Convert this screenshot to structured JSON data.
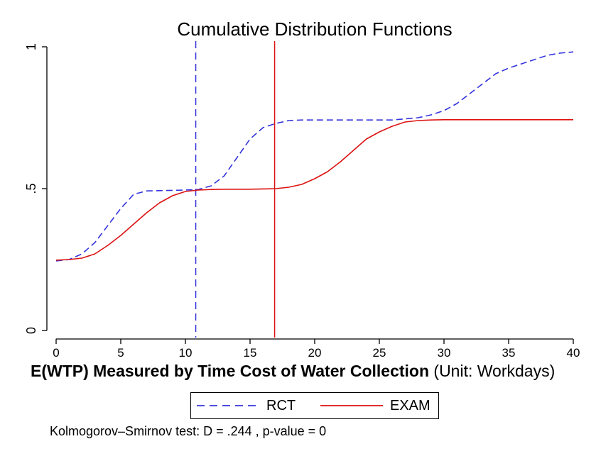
{
  "chart_data": {
    "type": "line",
    "title": "Cumulative Distribution Functions",
    "xlabel_bold": "E(WTP) Measured by Time Cost of Water Collection",
    "xlabel_rest": " (Unit: Workdays)",
    "xlim": [
      0,
      40
    ],
    "ylim": [
      0,
      1
    ],
    "x_ticks": [
      0,
      5,
      10,
      15,
      20,
      25,
      30,
      35,
      40
    ],
    "x_tick_labels": [
      "0",
      "5",
      "10",
      "15",
      "20",
      "25",
      "30",
      "35",
      "40"
    ],
    "y_ticks": [
      0,
      0.5,
      1
    ],
    "y_tick_labels": [
      "0",
      ".5",
      "1"
    ],
    "grid": false,
    "series": [
      {
        "name": "RCT",
        "color": "#3333dd",
        "dash": "dashed",
        "x": [
          0,
          1,
          2,
          3,
          4,
          5,
          6,
          7,
          8,
          9,
          10,
          11,
          12,
          13,
          14,
          15,
          16,
          17,
          18,
          19,
          20,
          22,
          24,
          26,
          28,
          29,
          30,
          31,
          32,
          33,
          34,
          35,
          36,
          37,
          38,
          39,
          40
        ],
        "y": [
          0.245,
          0.25,
          0.27,
          0.31,
          0.37,
          0.43,
          0.48,
          0.492,
          0.493,
          0.494,
          0.495,
          0.497,
          0.51,
          0.545,
          0.61,
          0.675,
          0.715,
          0.73,
          0.74,
          0.742,
          0.742,
          0.742,
          0.742,
          0.742,
          0.75,
          0.76,
          0.775,
          0.8,
          0.835,
          0.87,
          0.905,
          0.925,
          0.94,
          0.955,
          0.97,
          0.978,
          0.982
        ]
      },
      {
        "name": "EXAM",
        "color": "#dd1111",
        "dash": "solid",
        "x": [
          0,
          1,
          2,
          3,
          4,
          5,
          6,
          7,
          8,
          9,
          10,
          11,
          12,
          13,
          14,
          15,
          16,
          17,
          18,
          19,
          20,
          21,
          22,
          23,
          24,
          25,
          26,
          27,
          28,
          29,
          30,
          32,
          35,
          38,
          40
        ],
        "y": [
          0.248,
          0.25,
          0.255,
          0.27,
          0.3,
          0.335,
          0.375,
          0.415,
          0.45,
          0.475,
          0.49,
          0.495,
          0.497,
          0.498,
          0.498,
          0.498,
          0.499,
          0.5,
          0.505,
          0.515,
          0.535,
          0.56,
          0.595,
          0.635,
          0.675,
          0.7,
          0.72,
          0.735,
          0.74,
          0.742,
          0.743,
          0.743,
          0.743,
          0.743,
          0.743
        ]
      }
    ],
    "vlines": [
      {
        "x": 10.8,
        "color": "#3333dd",
        "dash": "dashed"
      },
      {
        "x": 16.9,
        "color": "#dd1111",
        "dash": "solid"
      }
    ],
    "legend": {
      "placement": "bottom-center",
      "entries": [
        "RCT",
        "EXAM"
      ]
    },
    "annotation": "Kolmogorov–Smirnov test: D = .244 , p-value = 0"
  }
}
